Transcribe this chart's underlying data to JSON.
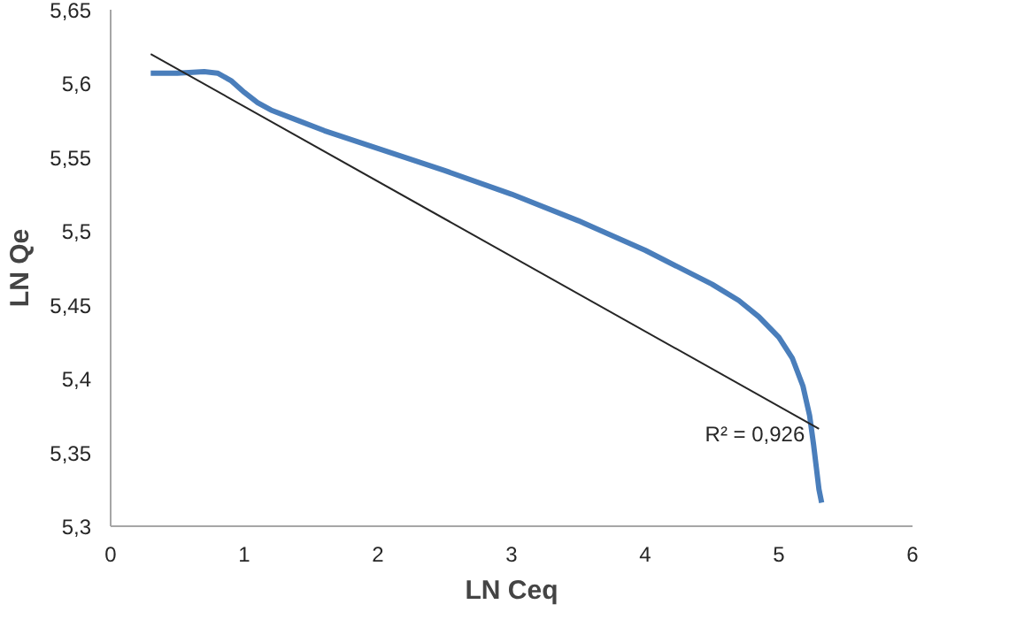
{
  "chart_data": {
    "type": "line",
    "xlabel": "LN Ceq",
    "ylabel": "LN Qe",
    "series": [
      {
        "color": "#4a7ebb",
        "x": [
          0.3,
          0.5,
          0.7,
          0.8,
          0.9,
          1.0,
          1.1,
          1.2,
          1.4,
          1.6,
          2.0,
          2.5,
          3.0,
          3.5,
          4.0,
          4.5,
          4.7,
          4.85,
          5.0,
          5.1,
          5.18,
          5.23,
          5.26,
          5.28,
          5.3,
          5.32
        ],
        "values": [
          5.607,
          5.607,
          5.608,
          5.607,
          5.602,
          5.594,
          5.587,
          5.582,
          5.575,
          5.568,
          5.556,
          5.541,
          5.525,
          5.507,
          5.487,
          5.464,
          5.453,
          5.442,
          5.428,
          5.414,
          5.395,
          5.375,
          5.355,
          5.34,
          5.325,
          5.316
        ]
      },
      {
        "type": "line",
        "color": "#262626",
        "x": [
          0.3,
          5.3
        ],
        "values": [
          5.62,
          5.366
        ]
      }
    ],
    "annotations": [
      "R² = 0,926"
    ],
    "xlim": [
      0,
      6
    ],
    "xticks": [
      0,
      1,
      2,
      3,
      4,
      5,
      6
    ],
    "ylim": [
      5.3,
      5.65
    ],
    "yticks": [
      {
        "value": 5.3,
        "label": "5,3"
      },
      {
        "value": 5.35,
        "label": "5,35"
      },
      {
        "value": 5.4,
        "label": "5,4"
      },
      {
        "value": 5.45,
        "label": "5,45"
      },
      {
        "value": 5.5,
        "label": "5,5"
      },
      {
        "value": 5.55,
        "label": "5,55"
      },
      {
        "value": 5.6,
        "label": "5,6"
      },
      {
        "value": 5.65,
        "label": "5,65"
      }
    ],
    "grid": false
  }
}
